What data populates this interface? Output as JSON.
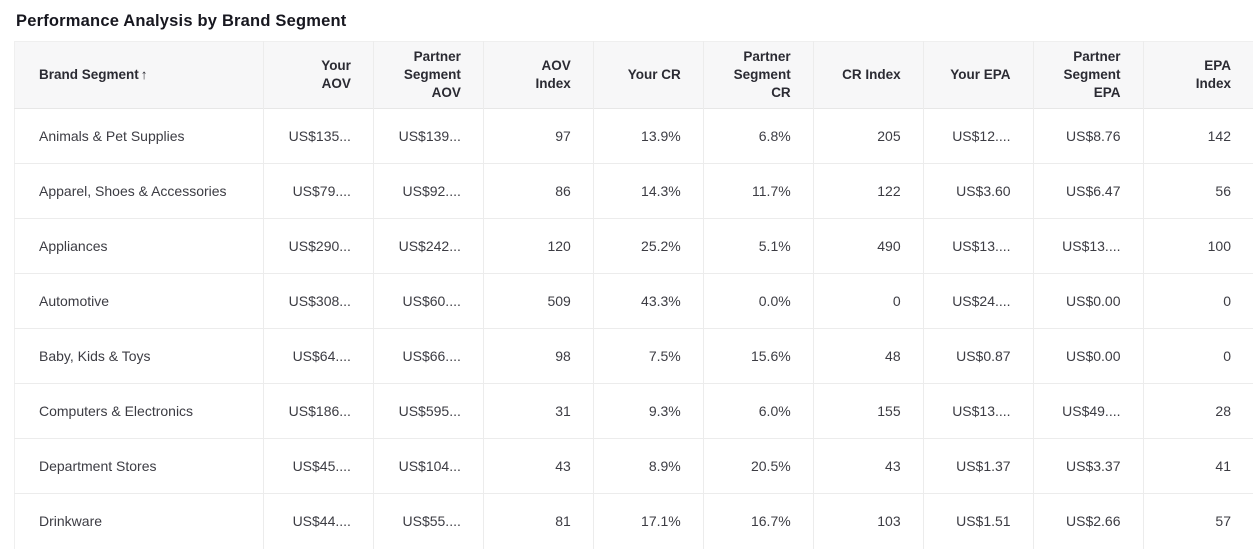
{
  "page": {
    "title": "Performance Analysis by Brand Segment"
  },
  "table": {
    "sort_indicator": "↑",
    "columns": [
      {
        "key": "segment",
        "label": "Brand Segment",
        "lines": [
          "Brand Segment"
        ],
        "align": "left",
        "sorted": true
      },
      {
        "key": "your_aov",
        "label": "Your AOV",
        "lines": [
          "Your",
          "AOV"
        ],
        "align": "right",
        "sorted": false
      },
      {
        "key": "partner_aov",
        "label": "Partner Segment AOV",
        "lines": [
          "Partner",
          "Segment",
          "AOV"
        ],
        "align": "right",
        "sorted": false
      },
      {
        "key": "aov_index",
        "label": "AOV Index",
        "lines": [
          "AOV",
          "Index"
        ],
        "align": "right",
        "sorted": false
      },
      {
        "key": "your_cr",
        "label": "Your CR",
        "lines": [
          "Your CR"
        ],
        "align": "right",
        "sorted": false
      },
      {
        "key": "partner_cr",
        "label": "Partner Segment CR",
        "lines": [
          "Partner",
          "Segment",
          "CR"
        ],
        "align": "right",
        "sorted": false
      },
      {
        "key": "cr_index",
        "label": "CR Index",
        "lines": [
          "CR Index"
        ],
        "align": "right",
        "sorted": false
      },
      {
        "key": "your_epa",
        "label": "Your EPA",
        "lines": [
          "Your EPA"
        ],
        "align": "right",
        "sorted": false
      },
      {
        "key": "partner_epa",
        "label": "Partner Segment EPA",
        "lines": [
          "Partner",
          "Segment",
          "EPA"
        ],
        "align": "right",
        "sorted": false
      },
      {
        "key": "epa_index",
        "label": "EPA Index",
        "lines": [
          "EPA",
          "Index"
        ],
        "align": "right",
        "sorted": false
      }
    ],
    "rows": [
      {
        "segment": "Animals & Pet Supplies",
        "your_aov": "US$135...",
        "partner_aov": "US$139...",
        "aov_index": "97",
        "your_cr": "13.9%",
        "partner_cr": "6.8%",
        "cr_index": "205",
        "your_epa": "US$12....",
        "partner_epa": "US$8.76",
        "epa_index": "142"
      },
      {
        "segment": "Apparel, Shoes & Accessories",
        "your_aov": "US$79....",
        "partner_aov": "US$92....",
        "aov_index": "86",
        "your_cr": "14.3%",
        "partner_cr": "11.7%",
        "cr_index": "122",
        "your_epa": "US$3.60",
        "partner_epa": "US$6.47",
        "epa_index": "56"
      },
      {
        "segment": "Appliances",
        "your_aov": "US$290...",
        "partner_aov": "US$242...",
        "aov_index": "120",
        "your_cr": "25.2%",
        "partner_cr": "5.1%",
        "cr_index": "490",
        "your_epa": "US$13....",
        "partner_epa": "US$13....",
        "epa_index": "100"
      },
      {
        "segment": "Automotive",
        "your_aov": "US$308...",
        "partner_aov": "US$60....",
        "aov_index": "509",
        "your_cr": "43.3%",
        "partner_cr": "0.0%",
        "cr_index": "0",
        "your_epa": "US$24....",
        "partner_epa": "US$0.00",
        "epa_index": "0"
      },
      {
        "segment": "Baby, Kids & Toys",
        "your_aov": "US$64....",
        "partner_aov": "US$66....",
        "aov_index": "98",
        "your_cr": "7.5%",
        "partner_cr": "15.6%",
        "cr_index": "48",
        "your_epa": "US$0.87",
        "partner_epa": "US$0.00",
        "epa_index": "0"
      },
      {
        "segment": "Computers & Electronics",
        "your_aov": "US$186...",
        "partner_aov": "US$595...",
        "aov_index": "31",
        "your_cr": "9.3%",
        "partner_cr": "6.0%",
        "cr_index": "155",
        "your_epa": "US$13....",
        "partner_epa": "US$49....",
        "epa_index": "28"
      },
      {
        "segment": "Department Stores",
        "your_aov": "US$45....",
        "partner_aov": "US$104...",
        "aov_index": "43",
        "your_cr": "8.9%",
        "partner_cr": "20.5%",
        "cr_index": "43",
        "your_epa": "US$1.37",
        "partner_epa": "US$3.37",
        "epa_index": "41"
      },
      {
        "segment": "Drinkware",
        "your_aov": "US$44....",
        "partner_aov": "US$55....",
        "aov_index": "81",
        "your_cr": "17.1%",
        "partner_cr": "16.7%",
        "cr_index": "103",
        "your_epa": "US$1.51",
        "partner_epa": "US$2.66",
        "epa_index": "57"
      }
    ]
  }
}
